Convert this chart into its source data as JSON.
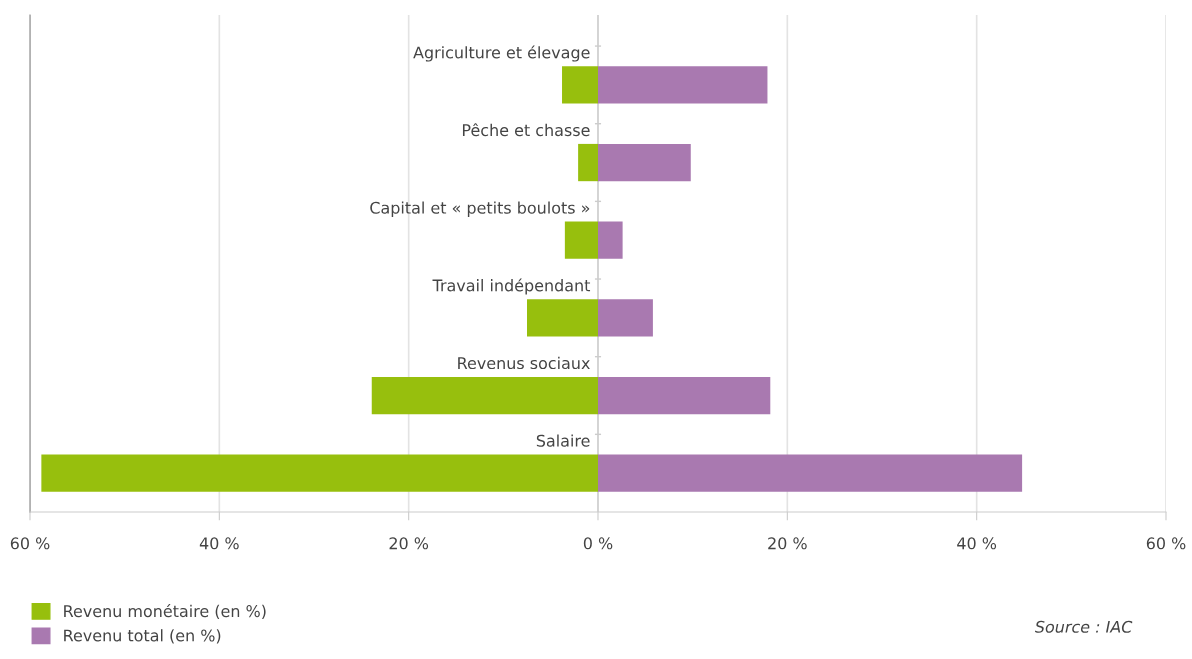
{
  "chart_data": {
    "type": "bar",
    "orientation": "horizontal",
    "stacked": true,
    "categories": [
      "Agriculture et élevage",
      "Pêche et chasse",
      "Capital et « petits boulots »",
      "Travail indépendant",
      "Revenus sociaux",
      "Salaire"
    ],
    "series": [
      {
        "name": "Revenu monétaire (en %)",
        "color": "#97bf0d",
        "values": [
          -3.8,
          -2.1,
          -3.5,
          -7.5,
          -23.9,
          -58.8
        ]
      },
      {
        "name": "Revenu total (en %)",
        "color": "#a979b0",
        "values": [
          17.9,
          9.8,
          2.6,
          5.8,
          18.2,
          44.8
        ]
      }
    ],
    "xlim": [
      -60,
      60
    ],
    "xticks": [
      {
        "value": -60,
        "label": "60 %"
      },
      {
        "value": -40,
        "label": "40 %"
      },
      {
        "value": -20,
        "label": "20 %"
      },
      {
        "value": 0,
        "label": "0 %"
      },
      {
        "value": 20,
        "label": "20 %"
      },
      {
        "value": 40,
        "label": "40 %"
      },
      {
        "value": 60,
        "label": "60 %"
      }
    ],
    "grid": "x",
    "legend": "bottom left",
    "annotations": [
      "Source : IAC"
    ]
  }
}
